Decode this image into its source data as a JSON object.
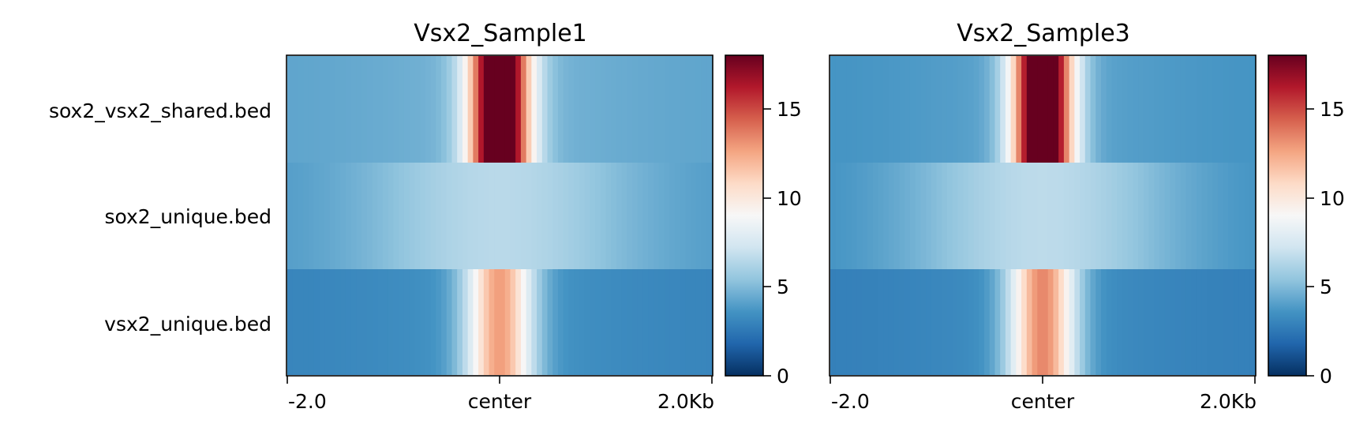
{
  "chart_data": {
    "type": "heatmap",
    "row_labels": [
      "sox2_vsx2_shared.bed",
      "sox2_unique.bed",
      "vsx2_unique.bed"
    ],
    "x_ticks": [
      "-2.0",
      "center",
      "2.0Kb"
    ],
    "x_range": [
      -2.0,
      2.0
    ],
    "colormap": "RdBu_r",
    "colorbar": {
      "min": 0,
      "max": 18,
      "ticks": [
        "0",
        "5",
        "10",
        "15"
      ]
    },
    "panels": [
      {
        "title": "Vsx2_Sample1",
        "rows": [
          {
            "name": "sox2_vsx2_shared.bed",
            "baseline": 4.2,
            "peak": 21,
            "width": 0.2
          },
          {
            "name": "sox2_unique.bed",
            "baseline": 3.8,
            "peak": 6.4,
            "width": 0.9
          },
          {
            "name": "vsx2_unique.bed",
            "baseline": 3.0,
            "peak": 12.2,
            "width": 0.22
          }
        ]
      },
      {
        "title": "Vsx2_Sample3",
        "rows": [
          {
            "name": "sox2_vsx2_shared.bed",
            "baseline": 3.6,
            "peak": 21,
            "width": 0.2
          },
          {
            "name": "sox2_unique.bed",
            "baseline": 3.4,
            "peak": 6.5,
            "width": 0.9
          },
          {
            "name": "vsx2_unique.bed",
            "baseline": 2.8,
            "peak": 12.8,
            "width": 0.22
          }
        ]
      }
    ]
  }
}
